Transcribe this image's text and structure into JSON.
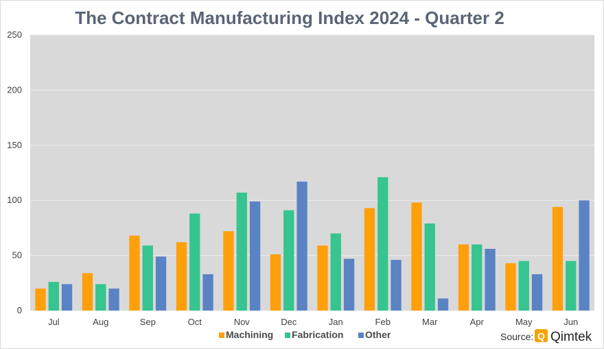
{
  "chart_data": {
    "type": "bar",
    "title": "The Contract Manufacturing Index 2024 - Quarter 2",
    "xlabel": "",
    "ylabel": "",
    "ylim": [
      0,
      250
    ],
    "yticks": [
      0,
      50,
      100,
      150,
      200,
      250
    ],
    "grid": true,
    "legend_position": "bottom-center",
    "categories": [
      "Jul",
      "Aug",
      "Sep",
      "Oct",
      "Nov",
      "Dec",
      "Jan",
      "Feb",
      "Mar",
      "Apr",
      "May",
      "Jun"
    ],
    "series": [
      {
        "name": "Machining",
        "color": "#ff9f0a",
        "values": [
          20,
          34,
          68,
          62,
          72,
          51,
          59,
          93,
          98,
          60,
          43,
          94
        ]
      },
      {
        "name": "Fabrication",
        "color": "#36c48f",
        "values": [
          26,
          24,
          59,
          88,
          107,
          91,
          70,
          121,
          79,
          60,
          45,
          45
        ]
      },
      {
        "name": "Other",
        "color": "#5a83c4",
        "values": [
          24,
          20,
          49,
          33,
          99,
          117,
          47,
          46,
          11,
          56,
          33,
          100
        ]
      }
    ],
    "plot_background": "#d9d9d9",
    "grid_color": "#ececec"
  },
  "source": {
    "label": "Source:",
    "brand_name": "Qimtek",
    "brand_mark": "Q",
    "brand_color": "#f5a300"
  }
}
